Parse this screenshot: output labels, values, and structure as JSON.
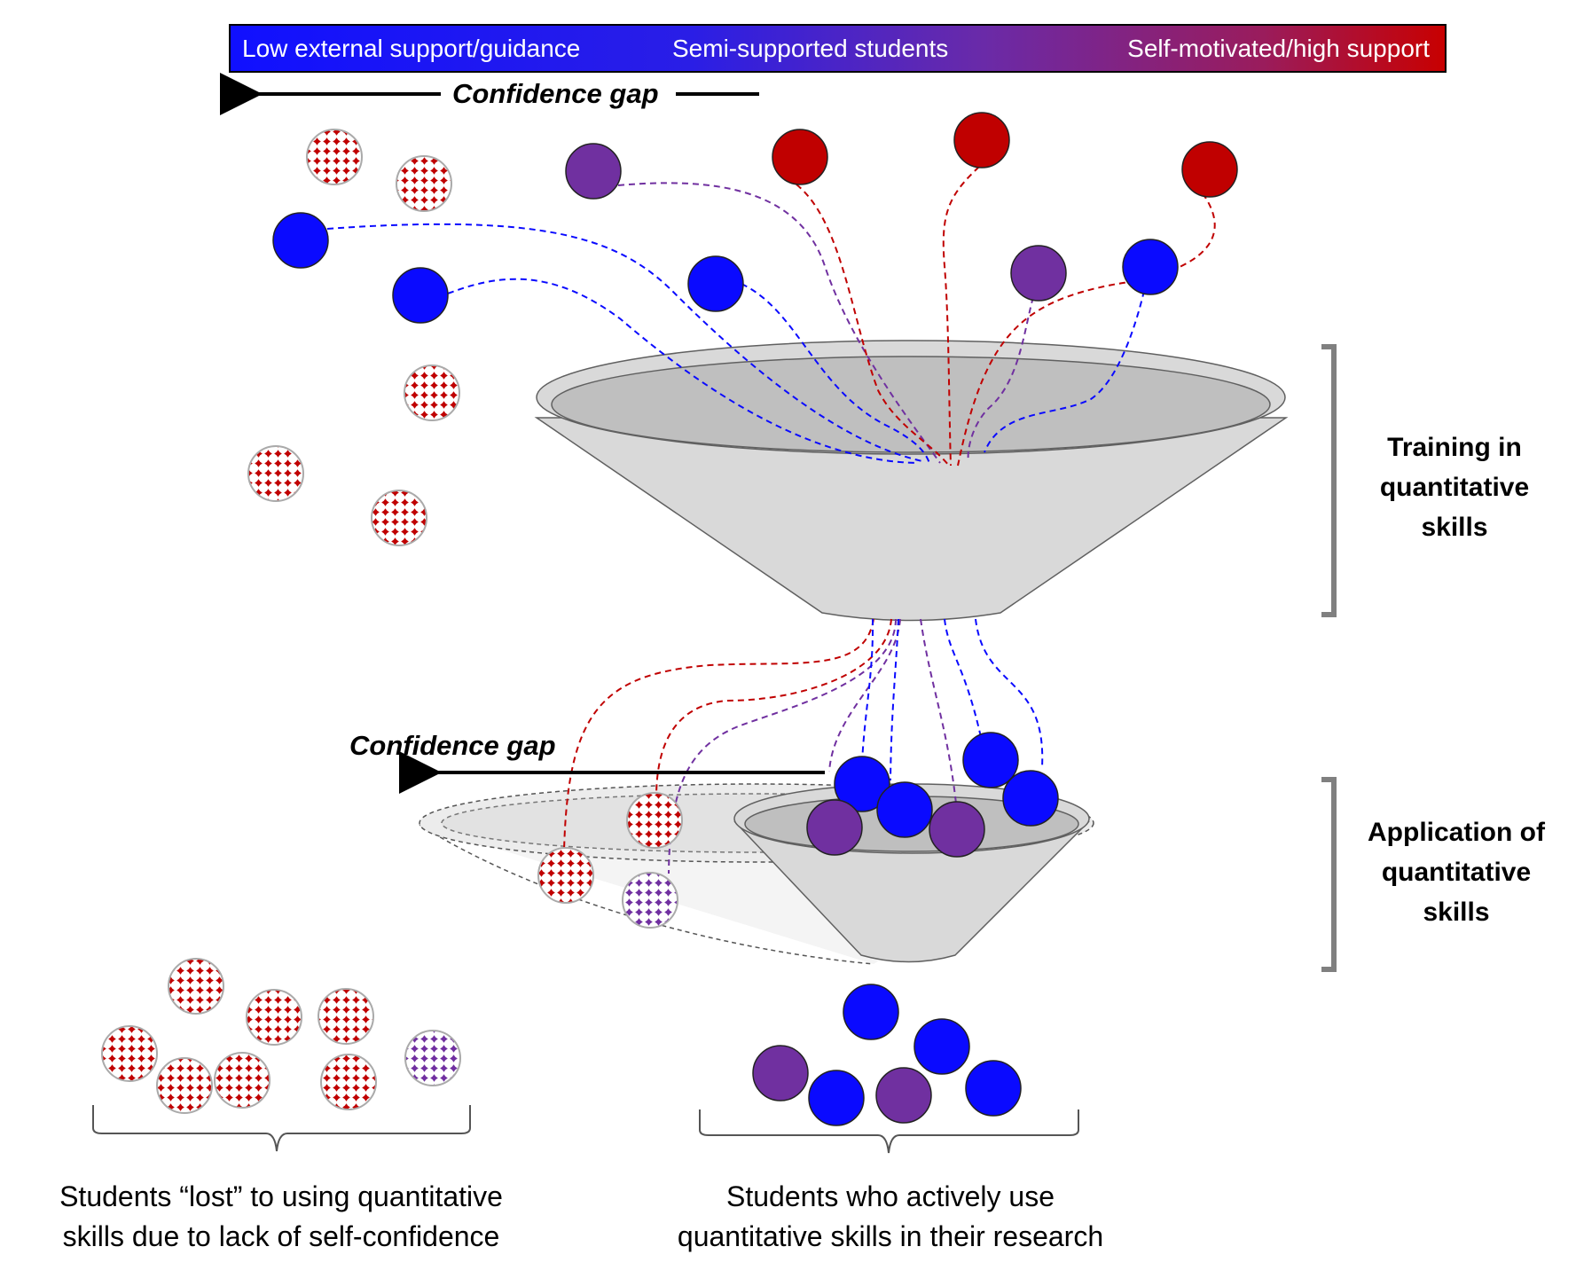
{
  "colors": {
    "low": "#0a0aff",
    "semi": "#7030a0",
    "high": "#c00000",
    "funnel_fill": "#d9d9d9",
    "funnel_inner": "#bfbfbf",
    "bracket": "#808080"
  },
  "gradient_bar": {
    "left_label": "Low external support/guidance",
    "middle_label": "Semi-supported students",
    "right_label": "Self-motivated/high support"
  },
  "confidence_gap_top": "Confidence gap",
  "confidence_gap_lower": "Confidence gap",
  "stages": {
    "training": [
      "Training in",
      "quantitative",
      "skills"
    ],
    "application": [
      "Application of",
      "quantitative",
      "skills"
    ]
  },
  "bottom_groups": {
    "lost": [
      "Students “lost” to using quantitative",
      "skills due to lack of self-confidence"
    ],
    "active": [
      "Students who actively use",
      "quantitative skills in their research"
    ]
  }
}
